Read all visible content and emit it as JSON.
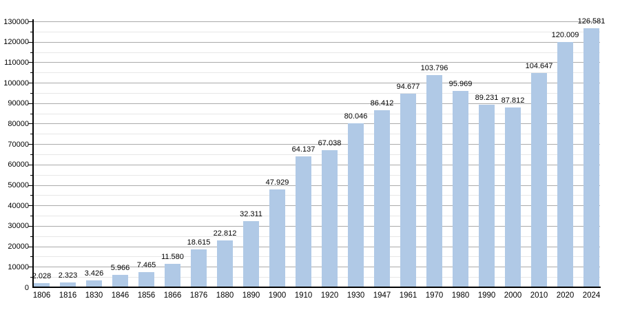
{
  "chart_data": {
    "type": "bar",
    "title": "",
    "xlabel": "",
    "ylabel": "",
    "categories": [
      "1806",
      "1816",
      "1830",
      "1846",
      "1856",
      "1866",
      "1876",
      "1880",
      "1890",
      "1900",
      "1910",
      "1920",
      "1930",
      "1947",
      "1961",
      "1970",
      "1980",
      "1990",
      "2000",
      "2010",
      "2020",
      "2024"
    ],
    "values": [
      2028,
      2323,
      3426,
      5966,
      7465,
      11580,
      18615,
      22812,
      32311,
      47929,
      64137,
      67038,
      80046,
      86412,
      94677,
      103796,
      95969,
      89231,
      87812,
      104647,
      120009,
      126581
    ],
    "value_labels": [
      "2.028",
      "2.323",
      "3.426",
      "5.966",
      "7.465",
      "11.580",
      "18.615",
      "22.812",
      "32.311",
      "47.929",
      "64.137",
      "67.038",
      "80.046",
      "86.412",
      "94.677",
      "103.796",
      "95.969",
      "89.231",
      "87.812",
      "104.647",
      "120.009",
      "126.581"
    ],
    "ylim": [
      0,
      130000
    ],
    "y_major_step": 10000,
    "y_minor_step": 5000,
    "y_tick_labels": [
      "0",
      "10000",
      "20000",
      "30000",
      "40000",
      "50000",
      "60000",
      "70000",
      "80000",
      "90000",
      "100000",
      "110000",
      "120000",
      "130000"
    ],
    "grid": true,
    "legend_position": "none"
  },
  "colors": {
    "background": "#ffffff",
    "bar_fill": "#b0c9e6",
    "major_grid": "#aaaaaa",
    "minor_grid": "#e7e7e7",
    "axis": "#000000",
    "text": "#000000"
  }
}
